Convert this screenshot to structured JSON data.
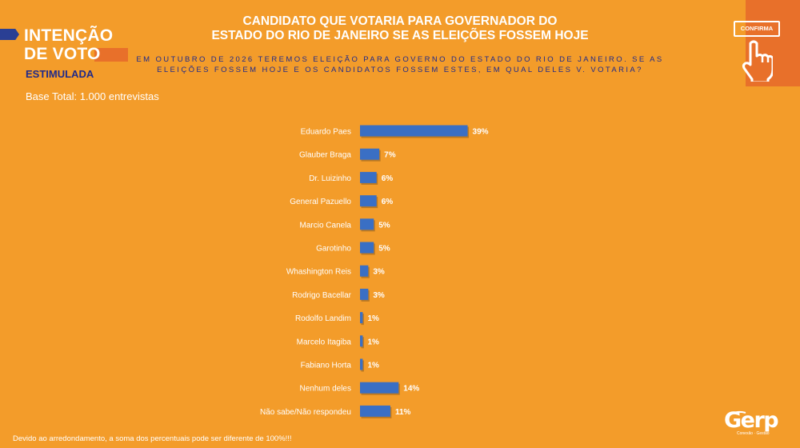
{
  "header": {
    "brand_line1": "INTENÇÃO",
    "brand_line2": "DE VOTO",
    "brand_sub": "ESTIMULADA",
    "title_line1": "CANDIDATO QUE VOTARIA PARA GOVERNADOR DO",
    "title_line2": "ESTADO DO RIO DE JANEIRO SE AS ELEIÇÕES FOSSEM HOJE",
    "question": "EM OUTUBRO DE 2026 TEREMOS ELEIÇÃO PARA GOVERNO DO ESTADO DO RIO DE JANEIRO. SE AS ELEIÇÕES FOSSEM HOJE E OS CANDIDATOS FOSSEM ESTES, EM QUAL DELES V. VOTARIA?",
    "base_total": "Base Total: 1.000 entrevistas",
    "confirma_label": "CONFIRMA"
  },
  "footer": {
    "note": "Devido ao arredondamento, a soma dos percentuais pode ser diferente de 100%!!!",
    "logo_text": "Gerp",
    "logo_tagline": "Conexão · Gestão"
  },
  "colors": {
    "background": "#F39C2A",
    "bar": "#3A6FC4",
    "accent": "#E8702A",
    "brand_blue": "#1F2A8A"
  },
  "icons": [
    "hand-pointer-icon",
    "confirm-button-icon"
  ],
  "chart_data": {
    "type": "bar",
    "orientation": "horizontal",
    "categories": [
      "Eduardo Paes",
      "Glauber Braga",
      "Dr. Luizinho",
      "General Pazuello",
      "Marcio Canela",
      "Garotinho",
      "Whashington Reis",
      "Rodrigo Bacellar",
      "Rodolfo Landim",
      "Marcelo Itagiba",
      "Fabiano Horta",
      "Nenhum deles",
      "Não sabe/Não respondeu"
    ],
    "values": [
      39,
      7,
      6,
      6,
      5,
      5,
      3,
      3,
      1,
      1,
      1,
      14,
      11
    ],
    "value_labels": [
      "39%",
      "7%",
      "6%",
      "6%",
      "5%",
      "5%",
      "3%",
      "3%",
      "1%",
      "1%",
      "1%",
      "14%",
      "11%"
    ],
    "xlim": [
      0,
      40
    ],
    "grid": false,
    "legend": "none"
  }
}
